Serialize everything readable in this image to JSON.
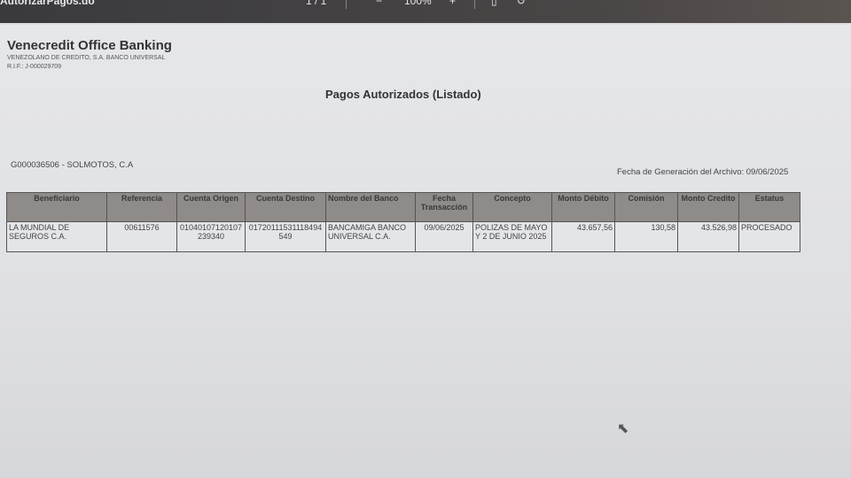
{
  "viewer": {
    "title": "AutorizarPagos.do",
    "page": "1 / 1",
    "zoom_out": "−",
    "zoom": "100%",
    "zoom_in": "+",
    "fit_icon": "fit-page-icon",
    "rotate_icon": "rotate-icon"
  },
  "header": {
    "bank": "Venecredit Office Banking",
    "legal_name": "VENEZOLANO DE CREDITO, S.A. BANCO UNIVERSAL",
    "rif": "R.I.F.: J-000029709"
  },
  "report": {
    "title": "Pagos Autorizados (Listado)",
    "client": "G000036506 - SOLMOTOS, C.A",
    "generated": "Fecha de Generación del Archivo: 09/06/2025"
  },
  "table": {
    "columns": [
      "Beneficiario",
      "Referencia",
      "Cuenta Origen",
      "Cuenta Destino",
      "Nombre del Banco",
      "Fecha Transacción",
      "Concepto",
      "Monto Débito",
      "Comisión",
      "Monto Credito",
      "Estatus"
    ],
    "rows": [
      [
        "LA MUNDIAL DE SEGUROS C.A.",
        "00611576",
        "01040107120107239340",
        "01720111531118494549",
        "BANCAMIGA BANCO UNIVERSAL C.A.",
        "09/06/2025",
        "POLIZAS DE MAYO Y 2 DE JUNIO 2025",
        "43.657,56",
        "130,58",
        "43.526,98",
        "PROCESADO"
      ]
    ]
  }
}
